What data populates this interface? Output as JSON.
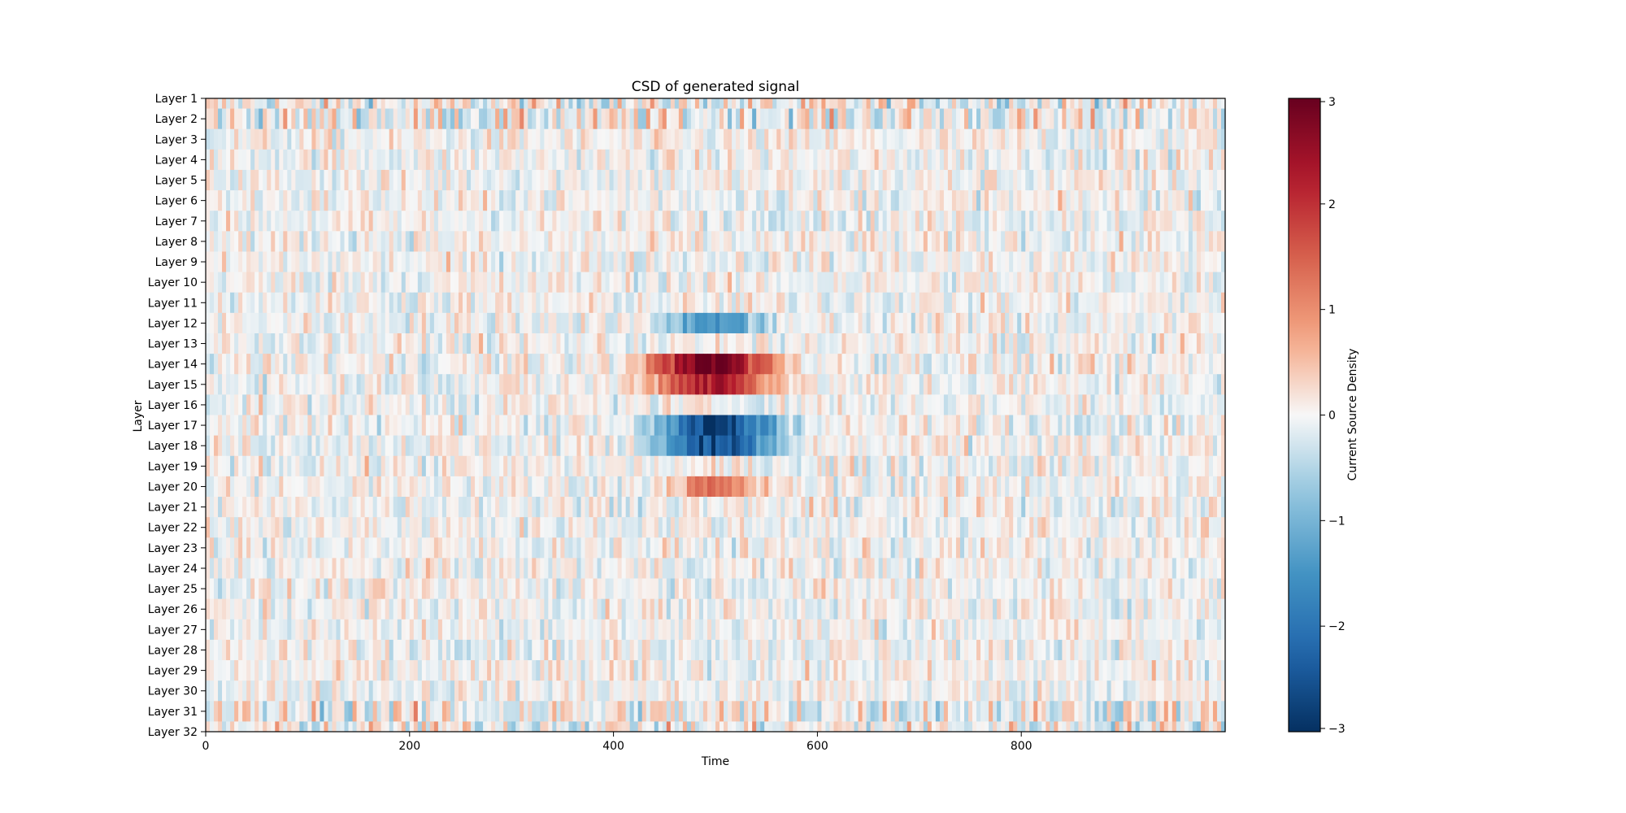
{
  "chart_data": {
    "type": "heatmap",
    "title": "CSD of generated signal",
    "xlabel": "Time",
    "ylabel": "Layer",
    "xlim": [
      0,
      1000
    ],
    "x_ticks": [
      0,
      200,
      400,
      600,
      800
    ],
    "rows": [
      "Layer 1",
      "Layer 2",
      "Layer 3",
      "Layer 4",
      "Layer 5",
      "Layer 6",
      "Layer 7",
      "Layer 8",
      "Layer 9",
      "Layer 10",
      "Layer 11",
      "Layer 12",
      "Layer 13",
      "Layer 14",
      "Layer 15",
      "Layer 16",
      "Layer 17",
      "Layer 18",
      "Layer 19",
      "Layer 20",
      "Layer 21",
      "Layer 22",
      "Layer 23",
      "Layer 24",
      "Layer 25",
      "Layer 26",
      "Layer 27",
      "Layer 28",
      "Layer 29",
      "Layer 30",
      "Layer 31",
      "Layer 32"
    ],
    "colormap": "RdBu_r",
    "colorbar": {
      "label": "Current Source Density",
      "range": [
        -3,
        3
      ],
      "ticks": [
        3,
        2,
        1,
        0,
        -1,
        -2,
        -3
      ],
      "tick_labels": [
        "3",
        "2",
        "1",
        "0",
        "−1",
        "−2",
        "−3"
      ]
    },
    "events": [
      {
        "layer": "Layer 12",
        "t_start": 440,
        "t_end": 560,
        "peak": -1.5
      },
      {
        "layer": "Layer 14",
        "t_start": 420,
        "t_end": 570,
        "peak": 3.0
      },
      {
        "layer": "Layer 15",
        "t_start": 420,
        "t_end": 570,
        "peak": 2.3
      },
      {
        "layer": "Layer 17",
        "t_start": 430,
        "t_end": 570,
        "peak": -2.8
      },
      {
        "layer": "Layer 18",
        "t_start": 430,
        "t_end": 570,
        "peak": -2.6
      },
      {
        "layer": "Layer 20",
        "t_start": 440,
        "t_end": 550,
        "peak": 1.2
      }
    ],
    "background_noise_std": 0.35,
    "grid": false
  }
}
